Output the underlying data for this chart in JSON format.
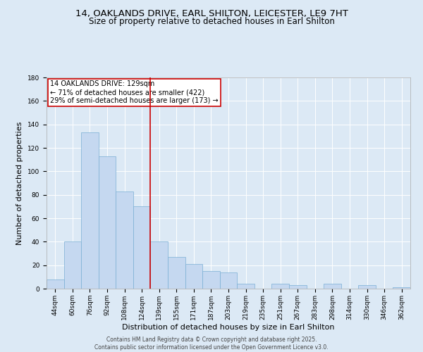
{
  "title1": "14, OAKLANDS DRIVE, EARL SHILTON, LEICESTER, LE9 7HT",
  "title2": "Size of property relative to detached houses in Earl Shilton",
  "xlabel": "Distribution of detached houses by size in Earl Shilton",
  "ylabel": "Number of detached properties",
  "categories": [
    "44sqm",
    "60sqm",
    "76sqm",
    "92sqm",
    "108sqm",
    "124sqm",
    "139sqm",
    "155sqm",
    "171sqm",
    "187sqm",
    "203sqm",
    "219sqm",
    "235sqm",
    "251sqm",
    "267sqm",
    "283sqm",
    "298sqm",
    "314sqm",
    "330sqm",
    "346sqm",
    "362sqm"
  ],
  "values": [
    8,
    40,
    133,
    113,
    83,
    70,
    40,
    27,
    21,
    15,
    14,
    4,
    0,
    4,
    3,
    0,
    4,
    0,
    3,
    0,
    1
  ],
  "bar_color": "#c5d8f0",
  "bar_edge_color": "#7bafd4",
  "vline_x": 5.5,
  "annotation_text": "14 OAKLANDS DRIVE: 129sqm\n← 71% of detached houses are smaller (422)\n29% of semi-detached houses are larger (173) →",
  "annotation_box_color": "#ffffff",
  "annotation_box_edge": "#cc0000",
  "annotation_text_color": "#000000",
  "vline_color": "#cc0000",
  "bg_color": "#dce9f5",
  "plot_bg_color": "#dce9f5",
  "footer": "Contains HM Land Registry data © Crown copyright and database right 2025.\nContains public sector information licensed under the Open Government Licence v3.0.",
  "ylim": [
    0,
    180
  ],
  "yticks": [
    0,
    20,
    40,
    60,
    80,
    100,
    120,
    140,
    160,
    180
  ],
  "title_fontsize": 9.5,
  "subtitle_fontsize": 8.5,
  "tick_fontsize": 6.5,
  "ylabel_fontsize": 8,
  "xlabel_fontsize": 8,
  "annotation_fontsize": 7,
  "footer_fontsize": 5.5
}
